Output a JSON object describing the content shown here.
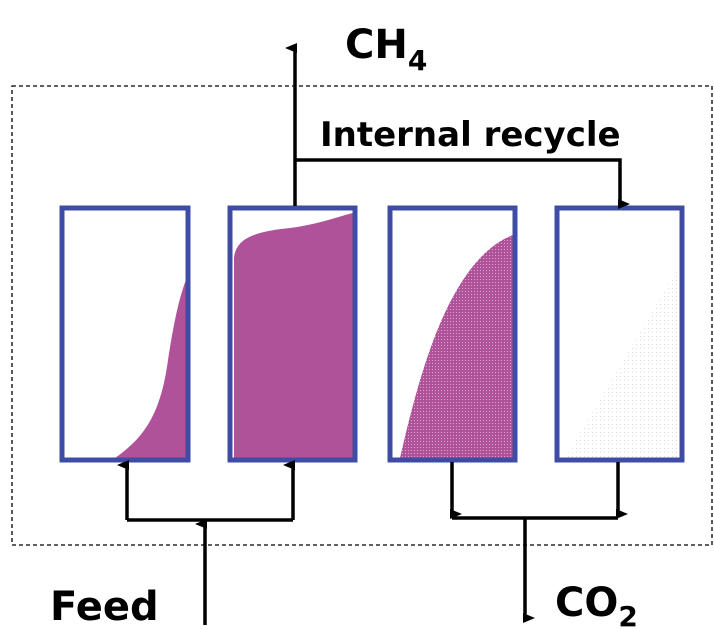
{
  "labels": {
    "methane": {
      "main": "CH",
      "sub": "4"
    },
    "recycle": "Internal recycle",
    "feed": "Feed",
    "carbon_dioxide": {
      "main": "CO",
      "sub": "2"
    }
  }
}
